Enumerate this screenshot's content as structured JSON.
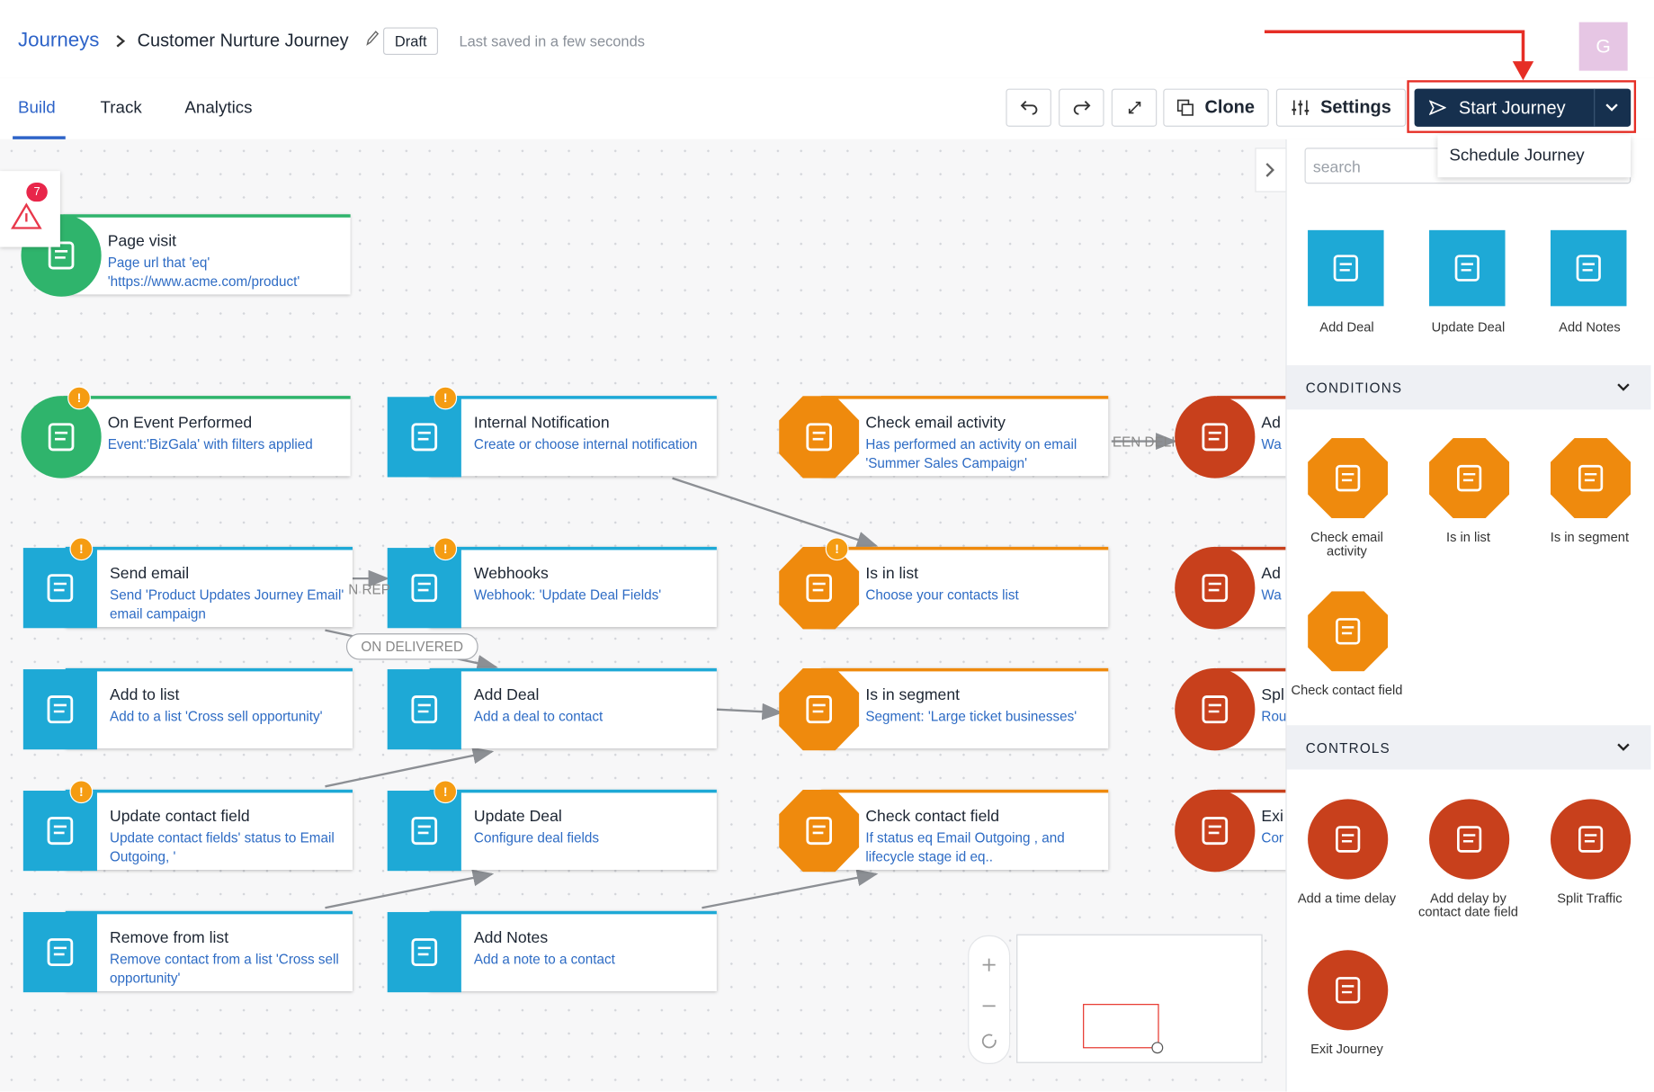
{
  "header": {
    "breadcrumb": "Journeys",
    "title": "Customer Nurture Journey",
    "status": "Draft",
    "saved": "Last saved in a few seconds",
    "avatar": "G"
  },
  "tabs": [
    "Build",
    "Track",
    "Analytics"
  ],
  "toolbar": {
    "clone": "Clone",
    "settings": "Settings",
    "start": "Start Journey",
    "schedule": "Schedule Journey"
  },
  "alerts": {
    "count": 7
  },
  "nodes": [
    {
      "title": "Page visit",
      "desc": "Page url that 'eq' 'https://www.acme.com/product'"
    },
    {
      "title": "On Event Performed",
      "desc": "Event:'BizGala' with filters applied"
    },
    {
      "title": "Internal Notification",
      "desc": "Create or choose internal notification"
    },
    {
      "title": "Check email activity",
      "desc": "Has performed an activity on email 'Summer Sales Campaign'"
    },
    {
      "title": "Send email",
      "desc": "Send 'Product Updates Journey Email' email campaign"
    },
    {
      "title": "Webhooks",
      "desc": "Webhook: 'Update Deal Fields'"
    },
    {
      "title": "Is in list",
      "desc": "Choose your contacts list"
    },
    {
      "title": "Add to list",
      "desc": "Add to a list 'Cross sell opportunity'"
    },
    {
      "title": "Add Deal",
      "desc": "Add a deal to contact"
    },
    {
      "title": "Is in segment",
      "desc": "Segment: 'Large ticket businesses'"
    },
    {
      "title": "Update contact field",
      "desc": "Update contact fields' status to Email Outgoing, '"
    },
    {
      "title": "Update Deal",
      "desc": "Configure deal fields"
    },
    {
      "title": "Check contact field",
      "desc": "If status eq Email Outgoing , and lifecycle stage id eq.."
    },
    {
      "title": "Remove from list",
      "desc": "Remove contact from a list 'Cross sell opportunity'"
    },
    {
      "title": "Add Notes",
      "desc": "Add a note to a contact"
    },
    {
      "title": "Ad",
      "desc": "Wa ON"
    },
    {
      "title": "Ad",
      "desc": "Wa cor"
    },
    {
      "title": "Spl",
      "desc": "Rou"
    },
    {
      "title": "Exi",
      "desc": "Cor rea"
    }
  ],
  "edge_labels": [
    "ON DELIVERED",
    "N REP",
    "EEN DELI"
  ],
  "sidebar": {
    "search": "search",
    "actions": [
      "Add Deal",
      "Update Deal",
      "Add Notes"
    ],
    "conditions_title": "CONDITIONS",
    "conditions": [
      "Check email activity",
      "Is in list",
      "Is in segment",
      "Check contact field"
    ],
    "controls_title": "CONTROLS",
    "controls": [
      "Add a time delay",
      "Add delay by contact date field",
      "Split Traffic",
      "Exit Journey"
    ]
  }
}
